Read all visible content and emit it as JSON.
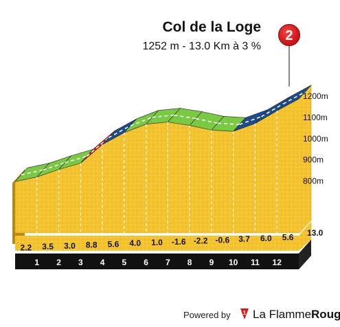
{
  "header": {
    "title": "Col de la Loge",
    "subtitle": "1252 m - 13.0 Km à 3 %",
    "badge": "2"
  },
  "footer": {
    "powered_by": "Powered by",
    "brand_light": "La Flamme",
    "brand_bold": "Rouge",
    "brand_logo_text": "1"
  },
  "colors": {
    "terrain": "#f4c430",
    "terrain_side": "#b88a14",
    "base": "#111111",
    "green": "#7ac943",
    "red": "#e4151f",
    "blue": "#1c4c8c",
    "badge": "#d81818"
  },
  "chart_data": {
    "type": "area",
    "title": "Col de la Loge",
    "subtitle": "1252 m - 13.0 Km à 3 %",
    "x_unit": "km",
    "y_unit": "m",
    "xlim": [
      0,
      13.0
    ],
    "ylim": [
      620,
      1252
    ],
    "y_ticks": [
      "800m",
      "900m",
      "1000m",
      "1100m",
      "1200m"
    ],
    "y_tick_values": [
      800,
      900,
      1000,
      1100,
      1200
    ],
    "x_tick_labels": [
      "1",
      "2",
      "3",
      "4",
      "5",
      "6",
      "7",
      "8",
      "9",
      "10",
      "11",
      "12"
    ],
    "x_tick_values": [
      1,
      2,
      3,
      4,
      5,
      6,
      7,
      8,
      9,
      10,
      11,
      12
    ],
    "distance_label": "13.0",
    "km_gradients": [
      {
        "km_start": 0,
        "km_end": 1,
        "gradient": "2.2",
        "value": 2.2,
        "category": "green"
      },
      {
        "km_start": 1,
        "km_end": 2,
        "gradient": "3.5",
        "value": 3.5,
        "category": "green"
      },
      {
        "km_start": 2,
        "km_end": 3,
        "gradient": "3.0",
        "value": 3.0,
        "category": "green"
      },
      {
        "km_start": 3,
        "km_end": 4,
        "gradient": "8.8",
        "value": 8.8,
        "category": "red"
      },
      {
        "km_start": 4,
        "km_end": 5,
        "gradient": "5.6",
        "value": 5.6,
        "category": "blue"
      },
      {
        "km_start": 5,
        "km_end": 6,
        "gradient": "4.0",
        "value": 4.0,
        "category": "green"
      },
      {
        "km_start": 6,
        "km_end": 7,
        "gradient": "1.0",
        "value": 1.0,
        "category": "green"
      },
      {
        "km_start": 7,
        "km_end": 8,
        "gradient": "-1.6",
        "value": -1.6,
        "category": "green"
      },
      {
        "km_start": 8,
        "km_end": 9,
        "gradient": "-2.2",
        "value": -2.2,
        "category": "green"
      },
      {
        "km_start": 9,
        "km_end": 10,
        "gradient": "-0.6",
        "value": -0.6,
        "category": "green"
      },
      {
        "km_start": 10,
        "km_end": 11,
        "gradient": "3.7",
        "value": 3.7,
        "category": "blue"
      },
      {
        "km_start": 11,
        "km_end": 12,
        "gradient": "6.0",
        "value": 6.0,
        "category": "blue"
      },
      {
        "km_start": 12,
        "km_end": 13,
        "gradient": "5.6",
        "value": 5.6,
        "category": "blue"
      }
    ],
    "grid": false,
    "legend": "none"
  }
}
